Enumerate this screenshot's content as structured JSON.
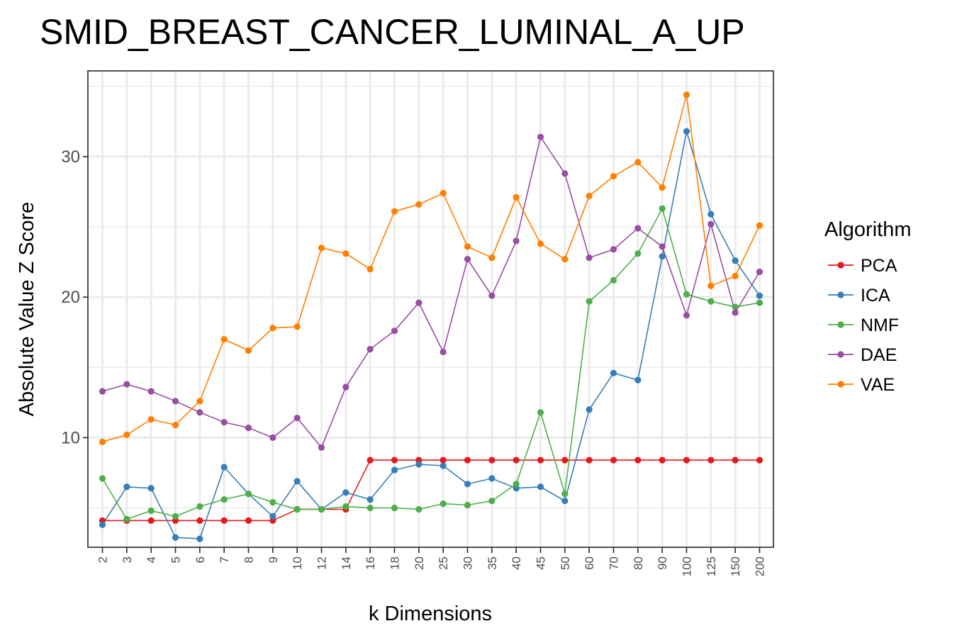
{
  "chart_data": {
    "type": "line",
    "title": "SMID_BREAST_CANCER_LUMINAL_A_UP",
    "xlabel": "k Dimensions",
    "ylabel": "Absolute Value Z Score",
    "categories": [
      "2",
      "3",
      "4",
      "5",
      "6",
      "7",
      "8",
      "9",
      "10",
      "12",
      "14",
      "16",
      "18",
      "20",
      "25",
      "30",
      "35",
      "40",
      "45",
      "50",
      "60",
      "70",
      "80",
      "90",
      "100",
      "125",
      "150",
      "200"
    ],
    "yticks": [
      10,
      20,
      30
    ],
    "ylim": [
      2.2,
      36.1
    ],
    "grid": true,
    "legend_title": "Algorithm",
    "legend_position": "right",
    "series": [
      {
        "name": "PCA",
        "color": "#e41a1c",
        "values": [
          4.1,
          4.1,
          4.1,
          4.1,
          4.1,
          4.1,
          4.1,
          4.1,
          4.9,
          4.9,
          4.9,
          8.4,
          8.4,
          8.4,
          8.4,
          8.4,
          8.4,
          8.4,
          8.4,
          8.4,
          8.4,
          8.4,
          8.4,
          8.4,
          8.4,
          8.4,
          8.4,
          8.4
        ]
      },
      {
        "name": "ICA",
        "color": "#377eb8",
        "values": [
          3.8,
          6.5,
          6.4,
          2.9,
          2.8,
          7.9,
          6.0,
          4.4,
          6.9,
          4.9,
          6.1,
          5.6,
          7.7,
          8.1,
          8.0,
          6.7,
          7.1,
          6.4,
          6.5,
          5.5,
          12.0,
          14.6,
          14.1,
          22.9,
          31.8,
          25.9,
          22.6,
          20.1
        ]
      },
      {
        "name": "NMF",
        "color": "#4daf4a",
        "values": [
          7.1,
          4.2,
          4.8,
          4.4,
          5.1,
          5.6,
          6.0,
          5.4,
          4.9,
          4.9,
          5.1,
          5.0,
          5.0,
          4.9,
          5.3,
          5.2,
          5.5,
          6.7,
          11.8,
          6.0,
          19.7,
          21.2,
          23.1,
          26.3,
          20.2,
          19.7,
          19.3,
          19.6
        ]
      },
      {
        "name": "DAE",
        "color": "#984ea3",
        "values": [
          13.3,
          13.8,
          13.3,
          12.6,
          11.8,
          11.1,
          10.7,
          10.0,
          11.4,
          9.3,
          13.6,
          16.3,
          17.6,
          19.6,
          16.1,
          22.7,
          20.1,
          24.0,
          31.4,
          28.8,
          22.8,
          23.4,
          24.9,
          23.6,
          18.7,
          25.2,
          18.9,
          21.8
        ]
      },
      {
        "name": "VAE",
        "color": "#ff7f00",
        "values": [
          9.7,
          10.2,
          11.3,
          10.9,
          12.6,
          17.0,
          16.2,
          17.8,
          17.9,
          23.5,
          23.1,
          22.0,
          26.1,
          26.6,
          27.4,
          23.6,
          22.8,
          27.1,
          23.8,
          22.7,
          27.2,
          28.6,
          29.6,
          27.8,
          34.4,
          20.8,
          21.5,
          25.1
        ]
      }
    ]
  }
}
